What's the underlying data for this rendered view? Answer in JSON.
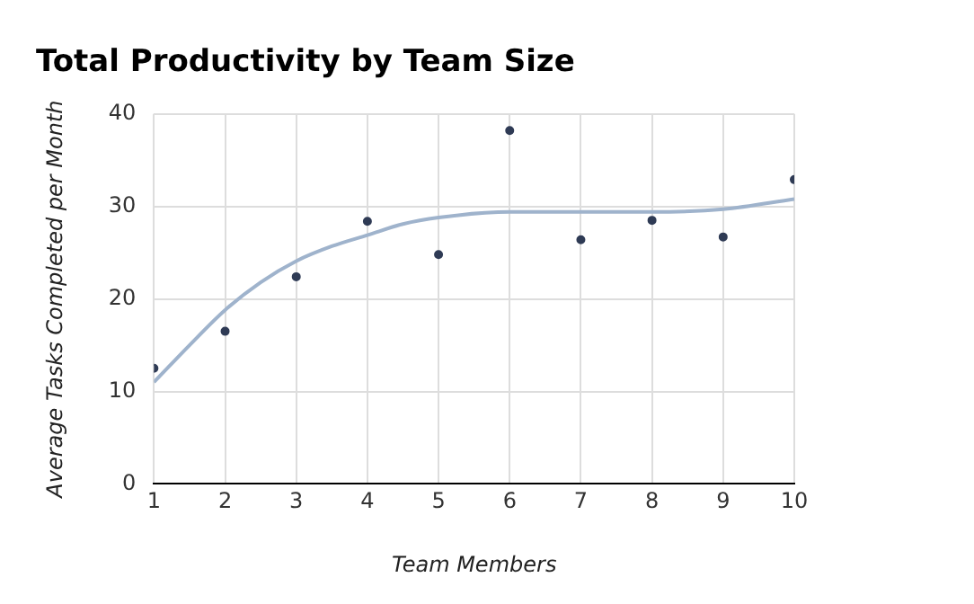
{
  "chart_data": {
    "type": "scatter",
    "title": "Total Productivity by Team Size",
    "xlabel": "Team Members",
    "ylabel": "Average Tasks Completed per Month",
    "xlim": [
      1,
      10
    ],
    "xticks": [
      1,
      2,
      3,
      4,
      5,
      6,
      7,
      8,
      9,
      10
    ],
    "ylim": [
      0,
      40
    ],
    "yticks": [
      0,
      10,
      20,
      30,
      40
    ],
    "grid": true,
    "legend": false,
    "series": [
      {
        "marker": "circle",
        "color": "#2f3b55",
        "x": [
          1,
          2,
          3,
          4,
          5,
          6,
          7,
          8,
          9,
          10
        ],
        "values": [
          12.5,
          16.5,
          22.4,
          28.4,
          24.8,
          38.2,
          26.4,
          28.5,
          26.7,
          32.9
        ]
      },
      {
        "type": "line",
        "marker": "none",
        "color": "#9fb3cc",
        "x": [
          1,
          1.5,
          2,
          2.5,
          3,
          3.5,
          4,
          4.5,
          5,
          6,
          7,
          8,
          9,
          10
        ],
        "values": [
          11.0,
          15.0,
          18.8,
          21.8,
          24.1,
          25.7,
          26.9,
          28.1,
          28.8,
          29.4,
          29.4,
          29.4,
          29.7,
          30.8
        ]
      }
    ]
  }
}
